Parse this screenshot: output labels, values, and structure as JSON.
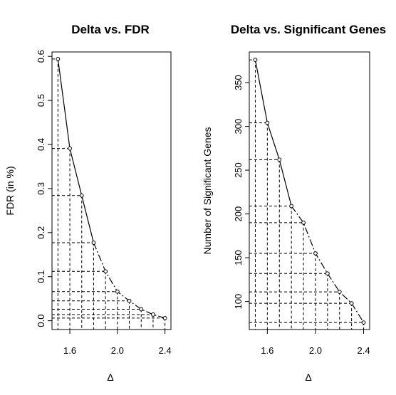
{
  "chart_data": [
    {
      "type": "line",
      "title": "Delta vs. FDR",
      "xlabel": "Δ",
      "ylabel": "FDR (in %)",
      "xlim": [
        1.45,
        2.45
      ],
      "ylim": [
        -0.02,
        0.61
      ],
      "xticks": [
        "1.6",
        "2.0",
        "2.4"
      ],
      "xtick_values": [
        1.6,
        2.0,
        2.4
      ],
      "yticks": [
        "0.0",
        "0.1",
        "0.2",
        "0.3",
        "0.4",
        "0.5",
        "0.6"
      ],
      "ytick_values": [
        0.0,
        0.1,
        0.2,
        0.3,
        0.4,
        0.5,
        0.6
      ],
      "x": [
        1.5,
        1.6,
        1.7,
        1.8,
        1.9,
        2.0,
        2.1,
        2.2,
        2.3,
        2.4
      ],
      "y": [
        0.594,
        0.391,
        0.284,
        0.177,
        0.112,
        0.066,
        0.045,
        0.026,
        0.014,
        0.006
      ],
      "drop_lines": true,
      "marker": "open-circle"
    },
    {
      "type": "line",
      "title": "Delta vs. Significant Genes",
      "xlabel": "Δ",
      "ylabel": "Number of Significant Genes",
      "xlim": [
        1.45,
        2.45
      ],
      "ylim": [
        68,
        385
      ],
      "xticks": [
        "1.6",
        "2.0",
        "2.4"
      ],
      "xtick_values": [
        1.6,
        2.0,
        2.4
      ],
      "yticks": [
        "100",
        "150",
        "200",
        "250",
        "300",
        "350"
      ],
      "ytick_values": [
        100,
        150,
        200,
        250,
        300,
        350
      ],
      "x": [
        1.5,
        1.6,
        1.7,
        1.8,
        1.9,
        2.0,
        2.1,
        2.2,
        2.3,
        2.4
      ],
      "y": [
        376,
        304,
        262,
        209,
        190,
        155,
        132,
        111,
        98,
        76
      ],
      "drop_lines": true,
      "marker": "open-circle"
    }
  ]
}
